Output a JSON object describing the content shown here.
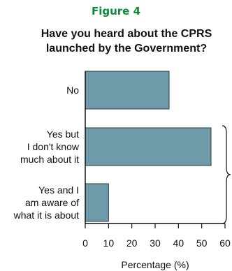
{
  "figure_label": "Figure 4",
  "chart_data": {
    "type": "bar",
    "orientation": "horizontal",
    "title": "Have you heard about the CPRS launched by the Government?",
    "title_lines": [
      "Have you heard about the CPRS",
      "launched by the Government?"
    ],
    "xlabel": "Percentage (%)",
    "ylabel": "",
    "xlim": [
      0,
      60
    ],
    "xticks": [
      0,
      10,
      20,
      30,
      40,
      50,
      60
    ],
    "grid": false,
    "bar_color": "#6f9aaa",
    "categories": [
      {
        "label_lines": [
          "No"
        ],
        "value": 36
      },
      {
        "label_lines": [
          "Yes but",
          "I don't know",
          "much about it"
        ],
        "value": 54
      },
      {
        "label_lines": [
          "Yes and I",
          "am aware of",
          "what it is about"
        ],
        "value": 10
      }
    ],
    "annotation": "bracket grouping Yes responses"
  }
}
